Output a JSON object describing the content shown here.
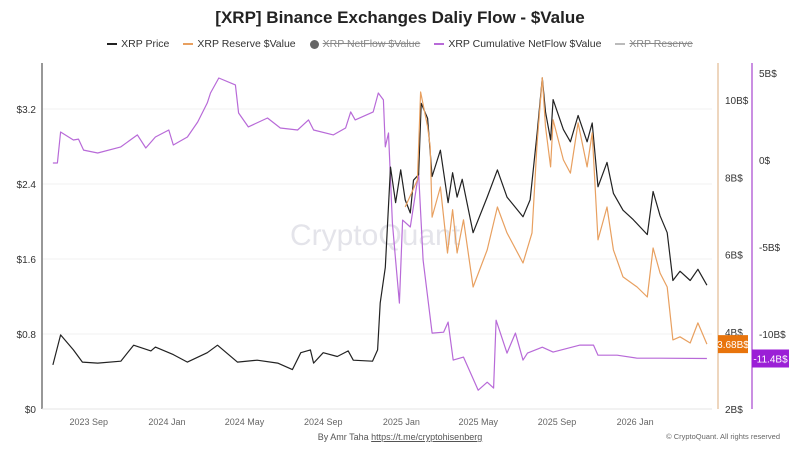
{
  "chart_data": {
    "type": "line",
    "title": "[XRP] Binance Exchanges Daliy Flow - $Value",
    "legend": [
      {
        "name": "XRP Price",
        "color": "#222222",
        "hidden": false
      },
      {
        "name": "XRP Reserve $Value",
        "color": "#e8a060",
        "hidden": false
      },
      {
        "name": "XRP NetFlow $Value",
        "color": "#666666",
        "hidden": true
      },
      {
        "name": "XRP Cumulative NetFlow $Value",
        "color": "#b86ad8",
        "hidden": false
      },
      {
        "name": "XRP Reserve",
        "color": "#aaaaaa",
        "hidden": true
      }
    ],
    "legend_placement": "top",
    "grid": true,
    "watermark": "CryptoQuant",
    "x_axis": {
      "type": "date",
      "range": [
        "2023-06-09",
        "2026-04-20"
      ],
      "ticks": [
        {
          "date": "2023-09-01",
          "label": "2023 Sep"
        },
        {
          "date": "2024-01-01",
          "label": "2024 Jan"
        },
        {
          "date": "2024-05-01",
          "label": "2024 May"
        },
        {
          "date": "2024-09-01",
          "label": "2024 Sep"
        },
        {
          "date": "2025-01-01",
          "label": "2025 Jan"
        },
        {
          "date": "2025-05-01",
          "label": "2025 May"
        },
        {
          "date": "2025-09-01",
          "label": "2025 Sep"
        },
        {
          "date": "2026-01-01",
          "label": "2026 Jan"
        }
      ]
    },
    "y_axes": {
      "price": {
        "position": "left",
        "range": [
          0,
          3.69
        ],
        "ticks": [
          {
            "v": 0,
            "label": "$0"
          },
          {
            "v": 0.8,
            "label": "$0.8"
          },
          {
            "v": 1.6,
            "label": "$1.6"
          },
          {
            "v": 2.4,
            "label": "$2.4"
          },
          {
            "v": 3.2,
            "label": "$3.2"
          }
        ]
      },
      "reserve": {
        "position": "right",
        "color": "#e8c9a8",
        "range": [
          2,
          10.96
        ],
        "ticks": [
          {
            "v": 2,
            "label": "2B$"
          },
          {
            "v": 4,
            "label": "4B$"
          },
          {
            "v": 6,
            "label": "6B$"
          },
          {
            "v": 8,
            "label": "8B$"
          },
          {
            "v": 10,
            "label": "10B$"
          }
        ]
      },
      "cumulative": {
        "position": "right",
        "color": "#b86ad8",
        "range": [
          -14.3,
          5.57
        ],
        "ticks": [
          {
            "v": 5,
            "label": "5B$"
          },
          {
            "v": 0,
            "label": "0$"
          },
          {
            "v": -5,
            "label": "-5B$"
          },
          {
            "v": -10,
            "label": "-10B$"
          }
        ]
      }
    },
    "series": [
      {
        "name": "XRP Price",
        "axis": "price",
        "color": "#222222",
        "unit": "USD",
        "points": [
          [
            "2023-06-26",
            0.47
          ],
          [
            "2023-07-08",
            0.79
          ],
          [
            "2023-07-28",
            0.63
          ],
          [
            "2023-08-11",
            0.5
          ],
          [
            "2023-09-04",
            0.49
          ],
          [
            "2023-10-10",
            0.51
          ],
          [
            "2023-10-30",
            0.68
          ],
          [
            "2023-11-26",
            0.62
          ],
          [
            "2023-12-03",
            0.66
          ],
          [
            "2023-12-31",
            0.58
          ],
          [
            "2024-01-22",
            0.5
          ],
          [
            "2024-02-22",
            0.6
          ],
          [
            "2024-03-09",
            0.68
          ],
          [
            "2024-04-09",
            0.5
          ],
          [
            "2024-05-10",
            0.52
          ],
          [
            "2024-06-11",
            0.49
          ],
          [
            "2024-07-04",
            0.42
          ],
          [
            "2024-07-17",
            0.6
          ],
          [
            "2024-08-01",
            0.63
          ],
          [
            "2024-08-06",
            0.49
          ],
          [
            "2024-08-21",
            0.6
          ],
          [
            "2024-09-12",
            0.56
          ],
          [
            "2024-09-29",
            0.62
          ],
          [
            "2024-10-07",
            0.52
          ],
          [
            "2024-11-06",
            0.51
          ],
          [
            "2024-11-14",
            0.63
          ],
          [
            "2024-11-18",
            1.13
          ],
          [
            "2024-11-26",
            1.51
          ],
          [
            "2024-12-04",
            2.58
          ],
          [
            "2024-12-12",
            2.2
          ],
          [
            "2024-12-20",
            2.55
          ],
          [
            "2024-12-27",
            2.23
          ],
          [
            "2025-01-04",
            2.09
          ],
          [
            "2025-01-09",
            2.44
          ],
          [
            "2025-01-17",
            2.5
          ],
          [
            "2025-01-21",
            3.26
          ],
          [
            "2025-01-31",
            3.1
          ],
          [
            "2025-02-07",
            2.48
          ],
          [
            "2025-02-20",
            2.76
          ],
          [
            "2025-03-04",
            2.2
          ],
          [
            "2025-03-11",
            2.52
          ],
          [
            "2025-03-18",
            2.26
          ],
          [
            "2025-03-26",
            2.45
          ],
          [
            "2025-04-12",
            1.88
          ],
          [
            "2025-05-04",
            2.26
          ],
          [
            "2025-05-20",
            2.55
          ],
          [
            "2025-06-04",
            2.26
          ],
          [
            "2025-06-29",
            2.05
          ],
          [
            "2025-07-10",
            2.23
          ],
          [
            "2025-07-21",
            2.94
          ],
          [
            "2025-07-29",
            3.53
          ],
          [
            "2025-08-03",
            3.17
          ],
          [
            "2025-08-11",
            2.87
          ],
          [
            "2025-08-15",
            3.3
          ],
          [
            "2025-08-31",
            2.98
          ],
          [
            "2025-09-11",
            2.85
          ],
          [
            "2025-09-23",
            3.13
          ],
          [
            "2025-10-07",
            2.85
          ],
          [
            "2025-10-15",
            3.05
          ],
          [
            "2025-10-24",
            2.37
          ],
          [
            "2025-11-07",
            2.63
          ],
          [
            "2025-11-17",
            2.3
          ],
          [
            "2025-12-02",
            2.12
          ],
          [
            "2025-12-18",
            2.02
          ],
          [
            "2026-01-09",
            1.86
          ],
          [
            "2026-01-18",
            2.32
          ],
          [
            "2026-01-29",
            2.06
          ],
          [
            "2026-02-09",
            1.88
          ],
          [
            "2026-02-18",
            1.37
          ],
          [
            "2026-03-01",
            1.47
          ],
          [
            "2026-03-17",
            1.37
          ],
          [
            "2026-03-29",
            1.49
          ],
          [
            "2026-04-12",
            1.32
          ]
        ]
      },
      {
        "name": "XRP Reserve $Value",
        "axis": "reserve",
        "color": "#e8a060",
        "unit": "B$",
        "last_label": "3.68B$",
        "label_color": "#e8740c",
        "points": [
          [
            "2024-12-27",
            7.23
          ],
          [
            "2025-01-15",
            7.93
          ],
          [
            "2025-01-20",
            10.21
          ],
          [
            "2025-01-31",
            9.31
          ],
          [
            "2025-02-04",
            8.79
          ],
          [
            "2025-02-07",
            6.97
          ],
          [
            "2025-02-20",
            7.75
          ],
          [
            "2025-03-03",
            6.04
          ],
          [
            "2025-03-11",
            7.16
          ],
          [
            "2025-03-18",
            6.04
          ],
          [
            "2025-03-28",
            6.9
          ],
          [
            "2025-04-12",
            5.16
          ],
          [
            "2025-05-04",
            6.12
          ],
          [
            "2025-05-20",
            7.23
          ],
          [
            "2025-06-04",
            6.56
          ],
          [
            "2025-06-29",
            5.78
          ],
          [
            "2025-07-13",
            6.56
          ],
          [
            "2025-07-21",
            8.89
          ],
          [
            "2025-07-29",
            10.58
          ],
          [
            "2025-08-03",
            9.31
          ],
          [
            "2025-08-11",
            8.27
          ],
          [
            "2025-08-15",
            9.49
          ],
          [
            "2025-08-31",
            8.45
          ],
          [
            "2025-09-11",
            8.11
          ],
          [
            "2025-09-23",
            9.41
          ],
          [
            "2025-10-07",
            8.27
          ],
          [
            "2025-10-15",
            9.15
          ],
          [
            "2025-10-24",
            6.38
          ],
          [
            "2025-11-07",
            7.23
          ],
          [
            "2025-11-17",
            6.12
          ],
          [
            "2025-12-02",
            5.42
          ],
          [
            "2025-12-24",
            5.16
          ],
          [
            "2026-01-09",
            4.9
          ],
          [
            "2026-01-18",
            6.17
          ],
          [
            "2026-01-29",
            5.52
          ],
          [
            "2026-02-09",
            5.16
          ],
          [
            "2026-02-18",
            3.79
          ],
          [
            "2026-03-01",
            3.87
          ],
          [
            "2026-03-17",
            3.71
          ],
          [
            "2026-03-29",
            4.23
          ],
          [
            "2026-04-12",
            3.68
          ]
        ]
      },
      {
        "name": "XRP Cumulative NetFlow $Value",
        "axis": "cumulative",
        "color": "#b86ad8",
        "unit": "B$",
        "last_label": "-11.4B$",
        "label_color": "#9b1fd6",
        "points": [
          [
            "2023-06-26",
            -0.17
          ],
          [
            "2023-07-03",
            -0.17
          ],
          [
            "2023-07-08",
            1.61
          ],
          [
            "2023-07-28",
            1.15
          ],
          [
            "2023-08-05",
            1.2
          ],
          [
            "2023-08-13",
            0.57
          ],
          [
            "2023-09-04",
            0.4
          ],
          [
            "2023-10-10",
            0.75
          ],
          [
            "2023-11-05",
            1.44
          ],
          [
            "2023-11-18",
            0.69
          ],
          [
            "2023-12-03",
            1.32
          ],
          [
            "2023-12-24",
            1.72
          ],
          [
            "2023-12-31",
            0.86
          ],
          [
            "2024-01-22",
            1.32
          ],
          [
            "2024-02-07",
            2.18
          ],
          [
            "2024-02-22",
            3.28
          ],
          [
            "2024-02-27",
            3.85
          ],
          [
            "2024-03-11",
            4.71
          ],
          [
            "2024-04-06",
            4.31
          ],
          [
            "2024-04-11",
            2.7
          ],
          [
            "2024-04-26",
            1.9
          ],
          [
            "2024-05-26",
            2.41
          ],
          [
            "2024-06-15",
            1.84
          ],
          [
            "2024-07-12",
            1.72
          ],
          [
            "2024-07-29",
            2.3
          ],
          [
            "2024-08-06",
            1.72
          ],
          [
            "2024-09-06",
            1.44
          ],
          [
            "2024-09-25",
            1.84
          ],
          [
            "2024-10-03",
            2.76
          ],
          [
            "2024-10-10",
            2.3
          ],
          [
            "2024-11-07",
            2.76
          ],
          [
            "2024-11-15",
            3.85
          ],
          [
            "2024-11-23",
            3.45
          ],
          [
            "2024-11-26",
            0.75
          ],
          [
            "2024-12-01",
            1.55
          ],
          [
            "2024-12-07",
            -3.62
          ],
          [
            "2024-12-12",
            -5.75
          ],
          [
            "2024-12-18",
            -8.22
          ],
          [
            "2024-12-23",
            -3.45
          ],
          [
            "2025-01-04",
            -3.85
          ],
          [
            "2025-01-17",
            -0.75
          ],
          [
            "2025-01-24",
            -5.75
          ],
          [
            "2025-02-07",
            -9.94
          ],
          [
            "2025-02-25",
            -9.89
          ],
          [
            "2025-03-04",
            -9.31
          ],
          [
            "2025-03-12",
            -11.49
          ],
          [
            "2025-03-28",
            -11.32
          ],
          [
            "2025-04-20",
            -13.22
          ],
          [
            "2025-05-04",
            -12.76
          ],
          [
            "2025-05-14",
            -13.1
          ],
          [
            "2025-05-18",
            -9.2
          ],
          [
            "2025-06-04",
            -11.09
          ],
          [
            "2025-06-17",
            -9.94
          ],
          [
            "2025-06-29",
            -11.49
          ],
          [
            "2025-07-06",
            -11.09
          ],
          [
            "2025-07-29",
            -10.75
          ],
          [
            "2025-08-15",
            -11.03
          ],
          [
            "2025-09-26",
            -10.63
          ],
          [
            "2025-10-17",
            -10.63
          ],
          [
            "2025-10-24",
            -11.21
          ],
          [
            "2025-11-23",
            -11.21
          ],
          [
            "2025-12-24",
            -11.38
          ],
          [
            "2026-01-29",
            -11.38
          ],
          [
            "2026-04-12",
            -11.4
          ]
        ]
      }
    ]
  },
  "footer": {
    "credit": "By Amr Taha",
    "link": "https://t.me/cryptohisenberg",
    "copyright": "© CryptoQuant. All rights reserved"
  }
}
